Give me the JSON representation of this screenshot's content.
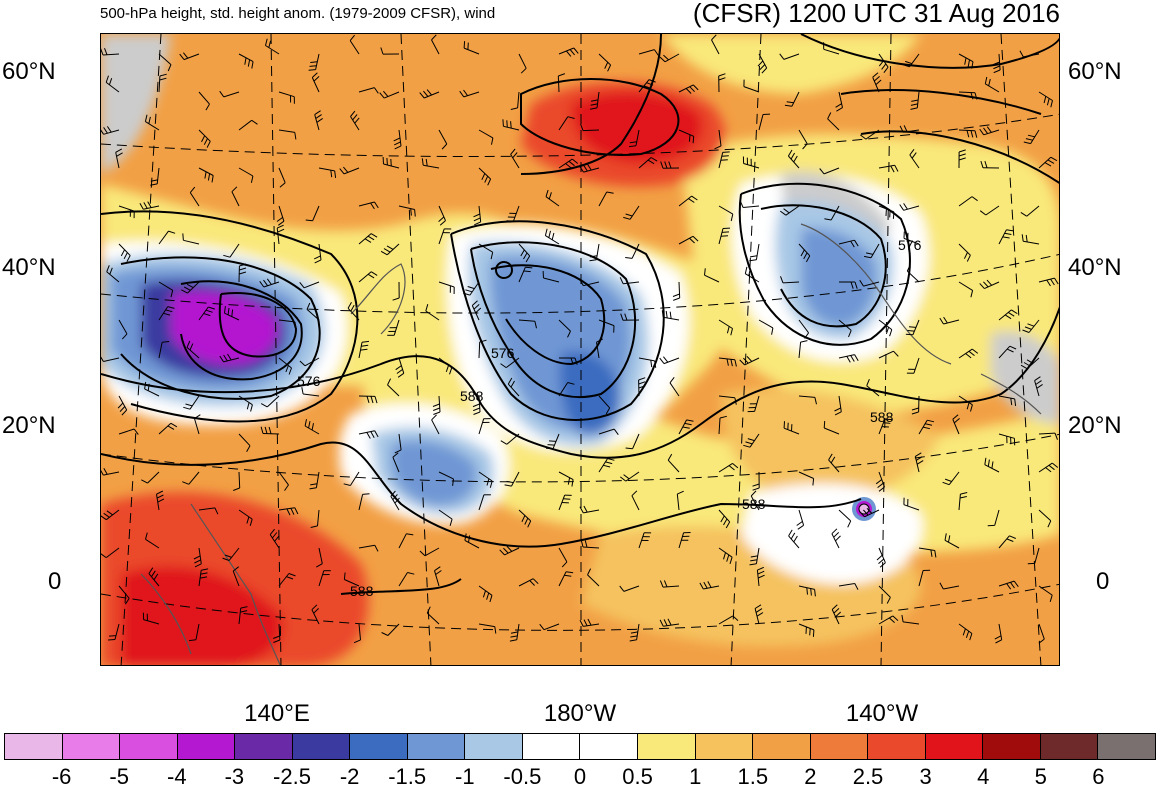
{
  "header": {
    "left_title": "500-hPa height, std. height anom. (1979-2009 CFSR), wind",
    "right_title": "(CFSR) 1200 UTC 31 Aug 2016"
  },
  "axes": {
    "lat_labels": [
      "60°N",
      "40°N",
      "20°N",
      "0"
    ],
    "lon_labels": [
      "140°E",
      "180°W",
      "140°W"
    ]
  },
  "contour_labels": [
    "576",
    "576",
    "588",
    "576",
    "588",
    "588",
    "588"
  ],
  "colorbar": {
    "labels": [
      "-6",
      "-5",
      "-4",
      "-3",
      "-2.5",
      "-2",
      "-1.5",
      "-1",
      "-0.5",
      "0",
      "0.5",
      "1",
      "1.5",
      "2",
      "2.5",
      "3",
      "4",
      "5",
      "6"
    ],
    "colors": [
      "#e9b8e9",
      "#e87de9",
      "#d94fe0",
      "#b418d0",
      "#6a2aa8",
      "#3a3aa0",
      "#3b6cc0",
      "#6f97d4",
      "#a8c8e6",
      "#ffffff",
      "#ffffff",
      "#f9e87a",
      "#f5c25e",
      "#f2a045",
      "#ef7b3a",
      "#ea4a2b",
      "#e0141a",
      "#a00c0c",
      "#6e2a2a",
      "#7a7070"
    ]
  },
  "colors": {
    "background_warm": "#f2a045",
    "land_outline": "#555555",
    "contour": "#000000"
  }
}
